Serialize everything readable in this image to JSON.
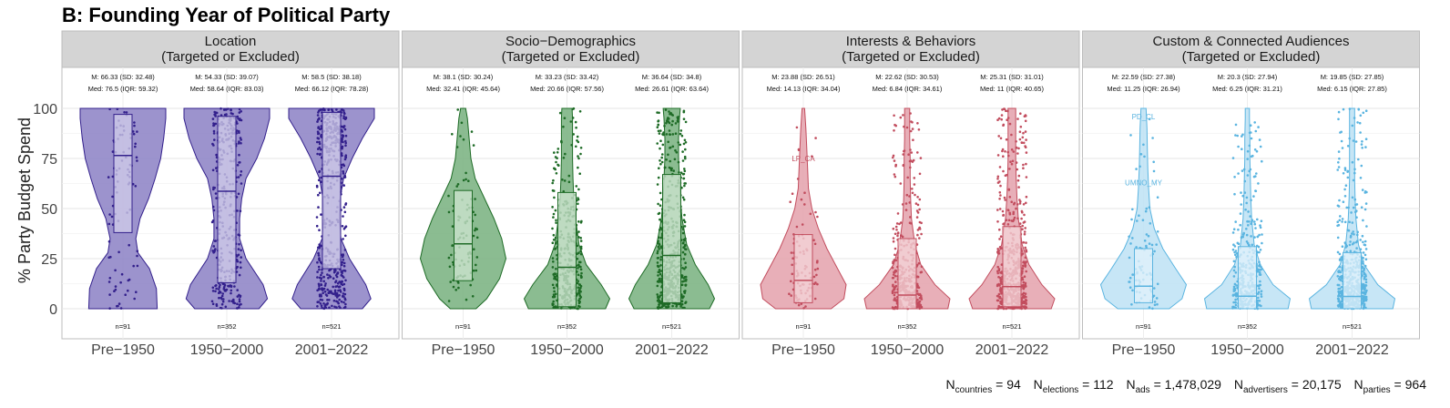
{
  "chart_data": {
    "type": "violin",
    "title": "B: Founding Year of Political Party",
    "ylabel": "% Party Budget Spend",
    "ylim": [
      0,
      100
    ],
    "yticks": [
      0,
      25,
      50,
      75,
      100
    ],
    "categories": [
      "Pre−1950",
      "1950−2000",
      "2001−2022"
    ],
    "grid": true,
    "panels": [
      {
        "title_line1": "Location",
        "title_line2": "(Targeted or Excluded)",
        "color": "#33208c",
        "fill": "#8b80c4",
        "box_fill": "#d2cdea",
        "groups": [
          {
            "category": "Pre−1950",
            "mean_text": "M: 66.33 (SD: 32.48)",
            "median_text": "Med: 76.5 (IQR: 59.32)",
            "n_text": "n=91",
            "n": 91,
            "median": 76.5,
            "q1": 38,
            "q3": 97,
            "density": [
              [
                0,
                0.8
              ],
              [
                10,
                0.78
              ],
              [
                20,
                0.62
              ],
              [
                28,
                0.35
              ],
              [
                35,
                0.3
              ],
              [
                45,
                0.4
              ],
              [
                55,
                0.6
              ],
              [
                65,
                0.75
              ],
              [
                75,
                0.88
              ],
              [
                85,
                0.95
              ],
              [
                95,
                1.0
              ],
              [
                100,
                1.0
              ]
            ]
          },
          {
            "category": "1950−2000",
            "mean_text": "M: 54.33 (SD: 39.07)",
            "median_text": "Med: 58.64 (IQR: 83.03)",
            "n_text": "n=352",
            "n": 352,
            "median": 58.64,
            "q1": 13,
            "q3": 96,
            "density": [
              [
                0,
                0.75
              ],
              [
                5,
                0.95
              ],
              [
                12,
                0.85
              ],
              [
                25,
                0.45
              ],
              [
                35,
                0.3
              ],
              [
                45,
                0.3
              ],
              [
                55,
                0.35
              ],
              [
                65,
                0.45
              ],
              [
                75,
                0.7
              ],
              [
                85,
                0.88
              ],
              [
                95,
                1.0
              ],
              [
                100,
                1.0
              ]
            ]
          },
          {
            "category": "2001−2022",
            "mean_text": "M: 58.5 (SD: 38.18)",
            "median_text": "Med: 66.12 (IQR: 78.28)",
            "n_text": "n=521",
            "n": 521,
            "median": 66.12,
            "q1": 20,
            "q3": 98,
            "density": [
              [
                0,
                0.72
              ],
              [
                5,
                0.92
              ],
              [
                12,
                0.8
              ],
              [
                25,
                0.42
              ],
              [
                35,
                0.22
              ],
              [
                45,
                0.18
              ],
              [
                55,
                0.2
              ],
              [
                65,
                0.28
              ],
              [
                75,
                0.48
              ],
              [
                85,
                0.72
              ],
              [
                95,
                1.0
              ],
              [
                100,
                1.0
              ]
            ]
          }
        ]
      },
      {
        "title_line1": "Socio−Demographics",
        "title_line2": "(Targeted or Excluded)",
        "color": "#1e6b26",
        "fill": "#77b07e",
        "box_fill": "#cfe6d1",
        "groups": [
          {
            "category": "Pre−1950",
            "mean_text": "M: 38.1 (SD: 30.24)",
            "median_text": "Med: 32.41 (IQR: 45.64)",
            "n_text": "n=91",
            "n": 91,
            "median": 32.41,
            "q1": 14,
            "q3": 59,
            "density": [
              [
                0,
                0.3
              ],
              [
                5,
                0.55
              ],
              [
                15,
                0.85
              ],
              [
                25,
                1.0
              ],
              [
                35,
                0.9
              ],
              [
                45,
                0.72
              ],
              [
                55,
                0.5
              ],
              [
                65,
                0.28
              ],
              [
                75,
                0.18
              ],
              [
                85,
                0.14
              ],
              [
                95,
                0.1
              ],
              [
                100,
                0.06
              ]
            ]
          },
          {
            "category": "1950−2000",
            "mean_text": "M: 33.23 (SD: 33.42)",
            "median_text": "Med: 20.66 (IQR: 57.56)",
            "n_text": "n=352",
            "n": 352,
            "median": 20.66,
            "q1": 1,
            "q3": 58,
            "density": [
              [
                0,
                0.9
              ],
              [
                5,
                1.0
              ],
              [
                12,
                0.8
              ],
              [
                22,
                0.45
              ],
              [
                32,
                0.28
              ],
              [
                45,
                0.2
              ],
              [
                55,
                0.16
              ],
              [
                65,
                0.14
              ],
              [
                75,
                0.13
              ],
              [
                85,
                0.13
              ],
              [
                95,
                0.13
              ],
              [
                100,
                0.12
              ]
            ]
          },
          {
            "category": "2001−2022",
            "mean_text": "M: 36.64 (SD: 34.8)",
            "median_text": "Med: 26.61 (IQR: 63.64)",
            "n_text": "n=521",
            "n": 521,
            "median": 26.61,
            "q1": 3,
            "q3": 67,
            "density": [
              [
                0,
                0.88
              ],
              [
                5,
                1.0
              ],
              [
                12,
                0.85
              ],
              [
                22,
                0.55
              ],
              [
                32,
                0.35
              ],
              [
                45,
                0.24
              ],
              [
                55,
                0.2
              ],
              [
                65,
                0.18
              ],
              [
                75,
                0.16
              ],
              [
                85,
                0.16
              ],
              [
                95,
                0.18
              ],
              [
                100,
                0.2
              ]
            ]
          }
        ]
      },
      {
        "title_line1": "Interests & Behaviors",
        "title_line2": "(Targeted or Excluded)",
        "color": "#c24d5e",
        "fill": "#e4a1ab",
        "box_fill": "#f4d6da",
        "groups": [
          {
            "category": "Pre−1950",
            "mean_text": "M: 23.88 (SD: 26.51)",
            "median_text": "Med: 14.13 (IQR: 34.04)",
            "n_text": "n=91",
            "n": 91,
            "median": 14.13,
            "q1": 3,
            "q3": 37,
            "density": [
              [
                0,
                0.65
              ],
              [
                5,
                0.95
              ],
              [
                12,
                1.0
              ],
              [
                20,
                0.8
              ],
              [
                30,
                0.55
              ],
              [
                40,
                0.35
              ],
              [
                50,
                0.2
              ],
              [
                60,
                0.12
              ],
              [
                70,
                0.1
              ],
              [
                80,
                0.08
              ],
              [
                90,
                0.06
              ],
              [
                100,
                0.03
              ]
            ]
          },
          {
            "category": "1950−2000",
            "mean_text": "M: 22.62 (SD: 30.53)",
            "median_text": "Med: 6.84 (IQR: 34.61)",
            "n_text": "n=352",
            "n": 352,
            "median": 6.84,
            "q1": 0,
            "q3": 35,
            "density": [
              [
                0,
                0.95
              ],
              [
                5,
                1.0
              ],
              [
                12,
                0.65
              ],
              [
                22,
                0.32
              ],
              [
                32,
                0.18
              ],
              [
                45,
                0.1
              ],
              [
                55,
                0.08
              ],
              [
                65,
                0.07
              ],
              [
                75,
                0.07
              ],
              [
                85,
                0.06
              ],
              [
                95,
                0.06
              ],
              [
                100,
                0.06
              ]
            ]
          },
          {
            "category": "2001−2022",
            "mean_text": "M: 25.31 (SD: 31.01)",
            "median_text": "Med: 11 (IQR: 40.65)",
            "n_text": "n=521",
            "n": 521,
            "median": 11,
            "q1": 1,
            "q3": 41,
            "density": [
              [
                0,
                0.92
              ],
              [
                5,
                1.0
              ],
              [
                12,
                0.7
              ],
              [
                22,
                0.4
              ],
              [
                32,
                0.24
              ],
              [
                45,
                0.15
              ],
              [
                55,
                0.12
              ],
              [
                65,
                0.1
              ],
              [
                75,
                0.09
              ],
              [
                85,
                0.09
              ],
              [
                95,
                0.09
              ],
              [
                100,
                0.09
              ]
            ]
          }
        ],
        "annotations": [
          {
            "group": 0,
            "text": "LP_CA",
            "y": 75
          }
        ]
      },
      {
        "title_line1": "Custom & Connected Audiences",
        "title_line2": "(Targeted or Excluded)",
        "color": "#5ab4e0",
        "fill": "#bde2f5",
        "box_fill": "#e2f2fb",
        "groups": [
          {
            "category": "Pre−1950",
            "mean_text": "M: 22.59 (SD: 27.38)",
            "median_text": "Med: 11.25 (IQR: 26.94)",
            "n_text": "n=91",
            "n": 91,
            "median": 11.25,
            "q1": 3,
            "q3": 30,
            "density": [
              [
                0,
                0.6
              ],
              [
                5,
                0.9
              ],
              [
                12,
                1.0
              ],
              [
                20,
                0.75
              ],
              [
                30,
                0.45
              ],
              [
                40,
                0.25
              ],
              [
                50,
                0.15
              ],
              [
                60,
                0.12
              ],
              [
                70,
                0.1
              ],
              [
                80,
                0.09
              ],
              [
                90,
                0.08
              ],
              [
                100,
                0.06
              ]
            ]
          },
          {
            "category": "1950−2000",
            "mean_text": "M: 20.3 (SD: 27.94)",
            "median_text": "Med: 6.25 (IQR: 31.21)",
            "n_text": "n=352",
            "n": 352,
            "median": 6.25,
            "q1": 0,
            "q3": 31,
            "density": [
              [
                0,
                0.95
              ],
              [
                5,
                1.0
              ],
              [
                12,
                0.6
              ],
              [
                22,
                0.3
              ],
              [
                32,
                0.16
              ],
              [
                45,
                0.1
              ],
              [
                55,
                0.08
              ],
              [
                65,
                0.07
              ],
              [
                75,
                0.06
              ],
              [
                85,
                0.06
              ],
              [
                95,
                0.05
              ],
              [
                100,
                0.05
              ]
            ]
          },
          {
            "category": "2001−2022",
            "mean_text": "M: 19.85 (SD: 27.85)",
            "median_text": "Med: 6.15 (IQR: 27.85)",
            "n_text": "n=521",
            "n": 521,
            "median": 6.15,
            "q1": 0,
            "q3": 28,
            "density": [
              [
                0,
                0.95
              ],
              [
                5,
                1.0
              ],
              [
                12,
                0.6
              ],
              [
                22,
                0.28
              ],
              [
                32,
                0.15
              ],
              [
                45,
                0.09
              ],
              [
                55,
                0.07
              ],
              [
                65,
                0.06
              ],
              [
                75,
                0.06
              ],
              [
                85,
                0.06
              ],
              [
                95,
                0.06
              ],
              [
                100,
                0.06
              ]
            ]
          }
        ],
        "annotations": [
          {
            "group": 0,
            "text": "PD_CL",
            "y": 96
          },
          {
            "group": 0,
            "text": "UMNO_MY",
            "y": 63
          }
        ]
      }
    ]
  },
  "footer": {
    "n_countries_label": "N",
    "n_countries_sub": "countries",
    "n_countries_value": " = 94",
    "n_elections_label": "N",
    "n_elections_sub": "elections",
    "n_elections_value": " = 112",
    "n_ads_label": "N",
    "n_ads_sub": "ads",
    "n_ads_value": " = 1,478,029",
    "n_advertisers_label": "N",
    "n_advertisers_sub": "advertisers",
    "n_advertisers_value": " = 20,175",
    "n_parties_label": "N",
    "n_parties_sub": "parties",
    "n_parties_value": " = 964"
  }
}
